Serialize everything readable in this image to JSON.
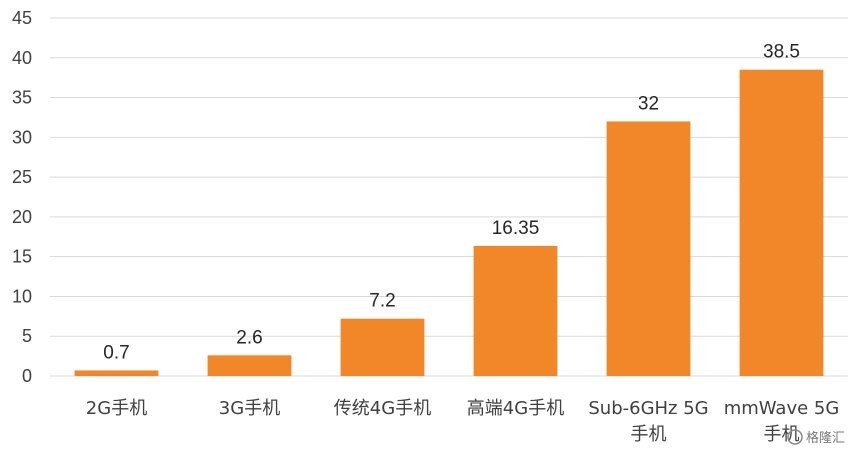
{
  "chart_data": {
    "type": "bar",
    "categories": [
      "2G手机",
      "3G手机",
      "传统4G手机",
      "高端4G手机",
      "Sub-6GHz 5G手机",
      "mmWave 5G手机"
    ],
    "category_lines": [
      [
        "2G手机"
      ],
      [
        "3G手机"
      ],
      [
        "传统4G手机"
      ],
      [
        "高端4G手机"
      ],
      [
        "Sub-6GHz 5G",
        "手机"
      ],
      [
        "mmWave 5G",
        "手机"
      ]
    ],
    "values": [
      0.7,
      2.6,
      7.2,
      16.35,
      32,
      38.5
    ],
    "data_labels": [
      "0.7",
      "2.6",
      "7.2",
      "16.35",
      "32",
      "38.5"
    ],
    "title": "",
    "xlabel": "",
    "ylabel": "",
    "ylim": [
      0,
      45
    ],
    "yticks": [
      0,
      5,
      10,
      15,
      20,
      25,
      30,
      35,
      40,
      45
    ],
    "grid": true,
    "bar_color": "#F28729",
    "grid_color": "#D9D9D9"
  },
  "watermark": {
    "text": "格隆汇"
  }
}
